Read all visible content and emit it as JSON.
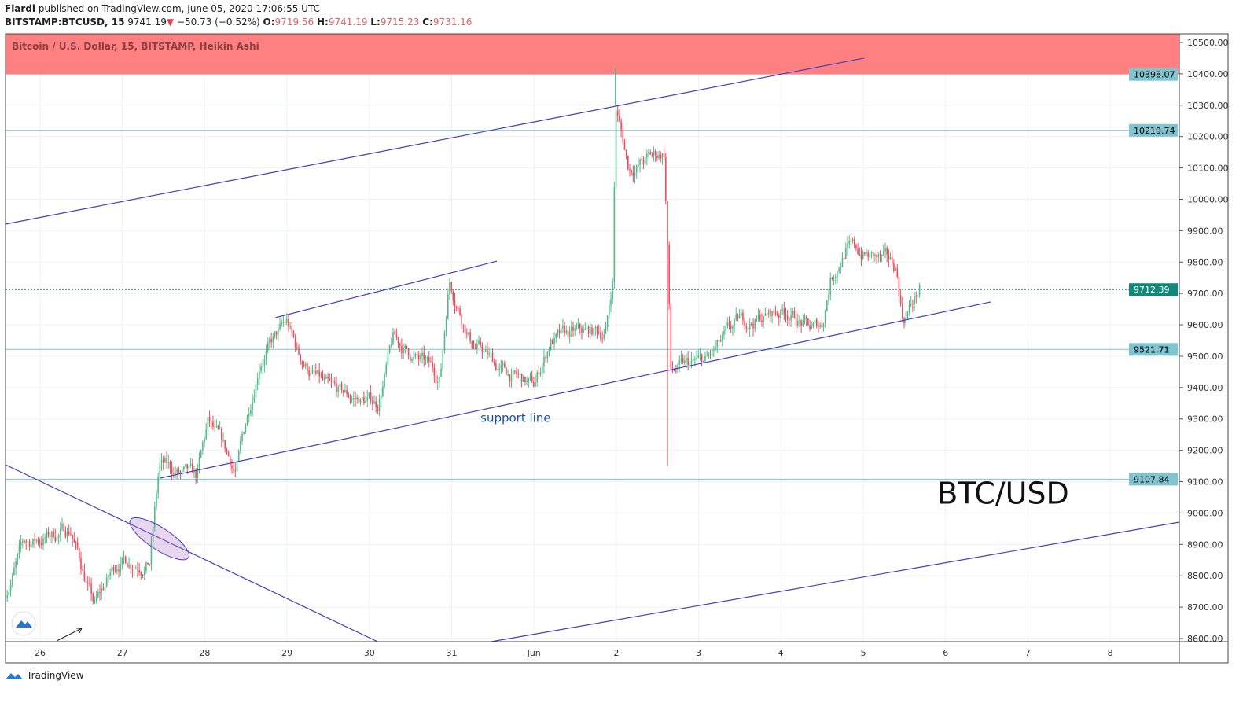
{
  "header": {
    "author": "Fiardi",
    "published": "published on TradingView.com, June 05, 2020 17:06:55 UTC",
    "symbol": "BITSTAMP:BTCUSD, 15",
    "last": "9741.19",
    "change": "−50.73 (−0.52%)",
    "o_label": "O:",
    "o": "9719.56",
    "h_label": "H:",
    "h": "9741.19",
    "l_label": "L:",
    "l": "9715.23",
    "c_label": "C:",
    "c": "9731.16"
  },
  "footer": {
    "brand": "TradingView"
  },
  "colors": {
    "up": "#53b987",
    "down": "#eb4d5c",
    "zone": "#ff8080",
    "line": "#3f3fbf",
    "hline": "#7fc4d0",
    "last": "#0f8a7a"
  },
  "chart_data": {
    "type": "candlestick",
    "title": "Bitcoin / U.S. Dollar, 15, BITSTAMP, Heikin Ashi",
    "ylim": [
      8600,
      10500
    ],
    "yticks": [
      "10500.00",
      "10400.00",
      "10300.00",
      "10200.00",
      "10100.00",
      "10000.00",
      "9900.00",
      "9800.00",
      "9700.00",
      "9600.00",
      "9500.00",
      "9400.00",
      "9300.00",
      "9200.00",
      "9100.00",
      "9000.00",
      "8900.00",
      "8800.00",
      "8700.00",
      "8600.00"
    ],
    "xticks": [
      "26",
      "27",
      "28",
      "29",
      "30",
      "31",
      "Jun",
      "2",
      "3",
      "4",
      "5",
      "6",
      "7",
      "8"
    ],
    "price_path": [
      [
        -0.42,
        8750
      ],
      [
        -0.2,
        8900
      ],
      [
        0.37,
        8950
      ],
      [
        0.66,
        8700
      ],
      [
        0.95,
        8850
      ],
      [
        1.33,
        8850
      ],
      [
        1.45,
        9150
      ],
      [
        1.9,
        9100
      ],
      [
        2.04,
        9280
      ],
      [
        2.38,
        9130
      ],
      [
        2.67,
        9500
      ],
      [
        3.0,
        9600
      ],
      [
        3.14,
        9500
      ],
      [
        3.52,
        9380
      ],
      [
        4.1,
        9350
      ],
      [
        4.29,
        9550
      ],
      [
        4.86,
        9430
      ],
      [
        4.97,
        9750
      ],
      [
        5.24,
        9550
      ],
      [
        5.62,
        9450
      ],
      [
        6.0,
        9400
      ],
      [
        6.2,
        9550
      ],
      [
        6.87,
        9580
      ],
      [
        6.96,
        9750
      ],
      [
        6.99,
        10300
      ],
      [
        7.15,
        10100
      ],
      [
        7.58,
        10150
      ],
      [
        7.63,
        9800
      ],
      [
        7.66,
        9450
      ],
      [
        8.1,
        9480
      ],
      [
        8.49,
        9600
      ],
      [
        9.07,
        9650
      ],
      [
        9.36,
        9580
      ],
      [
        9.5,
        9600
      ],
      [
        9.6,
        9750
      ],
      [
        9.79,
        9850
      ],
      [
        10.4,
        9780
      ],
      [
        10.48,
        9620
      ],
      [
        10.7,
        9720
      ]
    ],
    "spikes": [
      [
        6.99,
        10420
      ],
      [
        7.62,
        9150
      ]
    ],
    "horizontal_levels": [
      {
        "price": 10219.74,
        "label": "10219.74"
      },
      {
        "price": 9521.71,
        "label": "9521.71"
      },
      {
        "price": 9107.84,
        "label": "9107.84"
      }
    ],
    "last_price": {
      "price": 9712.39,
      "label": "9712.39"
    },
    "resistance_zone": {
      "from": 10398.07,
      "to": 10500,
      "label": "10398.07"
    },
    "trend_lines": [
      {
        "name": "upper-channel",
        "p1": [
          -0.42,
          9921
        ],
        "p2": [
          10.01,
          10450
        ]
      },
      {
        "name": "short-resistance",
        "p1": [
          2.86,
          9623
        ],
        "p2": [
          5.55,
          9803
        ]
      },
      {
        "name": "support-line",
        "p1": [
          1.45,
          9111
        ],
        "p2": [
          11.55,
          9673
        ]
      },
      {
        "name": "descending-line",
        "p1": [
          -0.42,
          9154
        ],
        "p2": [
          4.1,
          8590
        ]
      },
      {
        "name": "lower-channel",
        "p1": [
          5.48,
          8590
        ],
        "p2": [
          13.84,
          8971
        ]
      }
    ],
    "breakout_ellipse": [
      1.45,
      8918
    ],
    "annotations": [
      {
        "text": "support line",
        "at": [
          5.35,
          9300
        ]
      },
      {
        "text": "BTC/USD",
        "at": [
          10.9,
          9040
        ]
      }
    ]
  }
}
